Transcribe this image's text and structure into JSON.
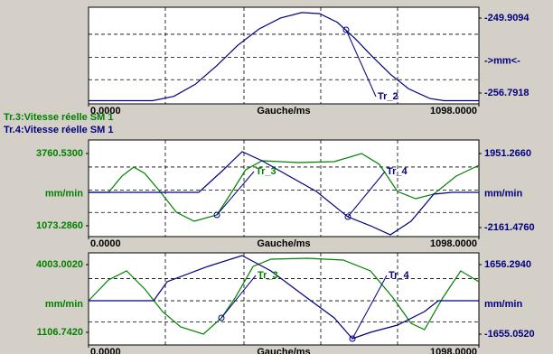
{
  "legend_lines": [
    {
      "text": "Tr.3:Vitesse réelle SM 1",
      "color": "#008000"
    },
    {
      "text": "Tr.4:Vitesse réelle SM 1",
      "color": "#000080"
    }
  ],
  "panels": [
    {
      "type": "line",
      "xlabel": "Gauche/ms",
      "xlim": [
        0,
        1098
      ],
      "xticks": [
        {
          "value": 0,
          "label": "0.0000"
        },
        {
          "value": 1098,
          "label": "1098.0000"
        }
      ],
      "y2lim": [
        -257.79,
        -248.91
      ],
      "y2label": "->mm<-",
      "y2ticks": [
        {
          "value": -249.9094,
          "label": "-249.9094"
        },
        {
          "value": -256.7918,
          "label": "-256.7918"
        }
      ],
      "series": [
        {
          "name": "Tr_2",
          "color": "#000080",
          "axis": "y2",
          "x": [
            0,
            180,
            240,
            300,
            360,
            420,
            480,
            540,
            600,
            650,
            700,
            750,
            800,
            850,
            900,
            960,
            1000,
            1098
          ],
          "values": [
            -257.5,
            -257.5,
            -257.1,
            -256.0,
            -254.3,
            -252.4,
            -250.9,
            -249.9,
            -249.4,
            -249.5,
            -250.3,
            -251.8,
            -253.5,
            -255.1,
            -256.4,
            -257.3,
            -257.5,
            -257.5
          ]
        }
      ]
    },
    {
      "type": "line",
      "xlabel": "Gauche/ms",
      "xlim": [
        0,
        1098
      ],
      "xticks": [
        {
          "value": 0,
          "label": "0.0000"
        },
        {
          "value": 1098,
          "label": "1098.0000"
        }
      ],
      "ylim": [
        670.2,
        4264.4
      ],
      "ylabel": "mm/min",
      "yticks": [
        {
          "value": 3760.53,
          "label": "3760.5300"
        },
        {
          "value": 1073.286,
          "label": "1073.2860"
        }
      ],
      "y2lim": [
        -2663.1,
        2703.7
      ],
      "y2label": "mm/min",
      "y2ticks": [
        {
          "value": 1951.266,
          "label": "1951.2660"
        },
        {
          "value": -2161.476,
          "label": "-2161.4760"
        }
      ],
      "series": [
        {
          "name": "Tr_3",
          "color": "#008000",
          "axis": "y",
          "x": [
            0,
            56,
            94,
            127,
            158,
            203,
            247,
            297,
            361,
            399,
            442,
            488,
            590,
            691,
            768,
            818,
            869,
            920,
            971,
            1034,
            1098
          ],
          "values": [
            2316.1,
            2316.1,
            2920.8,
            3256.7,
            3021.5,
            2316.1,
            1577.2,
            1241.3,
            1476.4,
            2249.0,
            3156.0,
            3491.8,
            3424.6,
            3458.0,
            3760.5,
            3357.4,
            2349.8,
            2081.0,
            2249.0,
            2920.8,
            3323.9
          ]
        },
        {
          "name": "Tr_4",
          "color": "#000080",
          "axis": "y2",
          "x": [
            0,
            310,
            374,
            432,
            488,
            564,
            641,
            729,
            793,
            849,
            907,
            971,
            1022,
            1098
          ],
          "values": [
            -205.6,
            -205.6,
            948.1,
            2051.6,
            1550.0,
            697.3,
            -155.5,
            -1559.9,
            -2061.5,
            -2563.1,
            -1810.7,
            -305.9,
            -205.6,
            -205.6
          ]
        }
      ]
    },
    {
      "type": "line",
      "xlabel": "Gauche/ms",
      "xlim": [
        0,
        1098
      ],
      "xticks": [
        {
          "value": 0,
          "label": "0.0000"
        },
        {
          "value": 1098,
          "label": "1098.0000"
        }
      ],
      "ylim": [
        566.1,
        4505.0
      ],
      "ylabel": "mm/min",
      "yticks": [
        {
          "value": 4003.002,
          "label": "4003.0020"
        },
        {
          "value": 1106.742,
          "label": "1106.7420"
        }
      ],
      "y2lim": [
        -2171.0,
        2215.3
      ],
      "y2label": "mm/min",
      "y2ticks": [
        {
          "value": 1656.294,
          "label": "1656.2940"
        },
        {
          "value": -1655.052,
          "label": "-1655.0520"
        }
      ],
      "series": [
        {
          "name": "Tr_3",
          "color": "#008000",
          "axis": "y",
          "x": [
            0,
            56,
            107,
            158,
            208,
            259,
            323,
            374,
            412,
            463,
            513,
            615,
            717,
            793,
            857,
            907,
            945,
            996,
            1047,
            1098
          ],
          "values": [
            2458.3,
            3346.5,
            3732.7,
            2960.4,
            1995.0,
            1338.4,
            1029.5,
            1724.6,
            2574.1,
            3925.8,
            4234.7,
            4273.3,
            4196.1,
            3732.7,
            2574.1,
            1492.9,
            1222.6,
            2574.1,
            3732.7,
            3269.3
          ]
        },
        {
          "name": "Tr_4",
          "color": "#000080",
          "axis": "y2",
          "x": [
            0,
            183,
            221,
            336,
            432,
            513,
            615,
            691,
            742,
            793,
            869,
            945,
            984,
            1098
          ],
          "values": [
            -63.9,
            -63.9,
            839.2,
            1570.3,
            2086.3,
            1355.3,
            65.1,
            -881.0,
            -1870.0,
            -1569.0,
            -1225.0,
            -580.0,
            -63.9,
            -63.9
          ]
        }
      ]
    }
  ]
}
